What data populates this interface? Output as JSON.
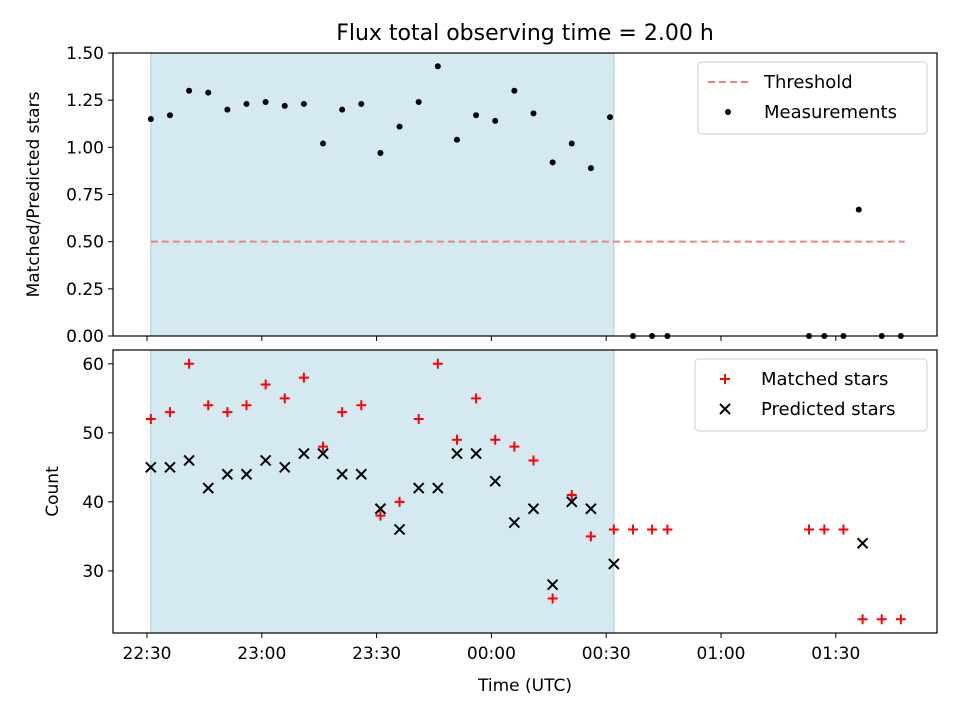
{
  "chart_data": [
    {
      "type": "scatter",
      "title": "Flux total observing time = 2.00 h",
      "ylabel": "Matched/Predicted stars",
      "xlabel": "",
      "ylim": [
        0,
        1.5
      ],
      "yticks": [
        0.0,
        0.25,
        0.5,
        0.75,
        1.0,
        1.25,
        1.5
      ],
      "ytick_labels": [
        "0.00",
        "0.25",
        "0.50",
        "0.75",
        "1.00",
        "1.25",
        "1.50"
      ],
      "shaded_interval": [
        "22:31",
        "00:32"
      ],
      "shade_color": "#d4eaf0",
      "legend_position": "top-right",
      "threshold": {
        "name": "Threshold",
        "value": 0.5,
        "x_range": [
          "22:31",
          "01:48"
        ],
        "color": "#f08080",
        "style": "dashed"
      },
      "series": [
        {
          "name": "Measurements",
          "marker": "dot",
          "color": "#000000",
          "points": [
            [
              "22:31",
              1.15
            ],
            [
              "22:36",
              1.17
            ],
            [
              "22:41",
              1.3
            ],
            [
              "22:46",
              1.29
            ],
            [
              "22:51",
              1.2
            ],
            [
              "22:56",
              1.23
            ],
            [
              "23:01",
              1.24
            ],
            [
              "23:06",
              1.22
            ],
            [
              "23:11",
              1.23
            ],
            [
              "23:16",
              1.02
            ],
            [
              "23:21",
              1.2
            ],
            [
              "23:26",
              1.23
            ],
            [
              "23:31",
              0.97
            ],
            [
              "23:36",
              1.11
            ],
            [
              "23:41",
              1.24
            ],
            [
              "23:46",
              1.43
            ],
            [
              "23:51",
              1.04
            ],
            [
              "23:56",
              1.17
            ],
            [
              "00:01",
              1.14
            ],
            [
              "00:06",
              1.3
            ],
            [
              "00:11",
              1.18
            ],
            [
              "00:16",
              0.92
            ],
            [
              "00:21",
              1.02
            ],
            [
              "00:26",
              0.89
            ],
            [
              "00:31",
              1.16
            ],
            [
              "00:37",
              0.0
            ],
            [
              "00:42",
              0.0
            ],
            [
              "00:46",
              0.0
            ],
            [
              "01:23",
              0.0
            ],
            [
              "01:27",
              0.0
            ],
            [
              "01:32",
              0.0
            ],
            [
              "01:36",
              0.67
            ],
            [
              "01:42",
              0.0
            ],
            [
              "01:47",
              0.0
            ]
          ]
        }
      ]
    },
    {
      "type": "scatter",
      "title": "",
      "ylabel": "Count",
      "xlabel": "Time (UTC)",
      "ylim": [
        21,
        62
      ],
      "yticks": [
        30,
        40,
        50,
        60
      ],
      "ytick_labels": [
        "30",
        "40",
        "50",
        "60"
      ],
      "xticks": [
        "22:30",
        "23:00",
        "23:30",
        "00:00",
        "00:30",
        "01:00",
        "01:30"
      ],
      "xtick_labels": [
        "22:30",
        "23:00",
        "23:30",
        "00:00",
        "00:30",
        "01:00",
        "01:30"
      ],
      "shaded_interval": [
        "22:31",
        "00:32"
      ],
      "shade_color": "#d4eaf0",
      "legend_position": "top-right",
      "series": [
        {
          "name": "Matched stars",
          "marker": "plus",
          "color": "#ff0000",
          "points": [
            [
              "22:31",
              52
            ],
            [
              "22:36",
              53
            ],
            [
              "22:41",
              60
            ],
            [
              "22:46",
              54
            ],
            [
              "22:51",
              53
            ],
            [
              "22:56",
              54
            ],
            [
              "23:01",
              57
            ],
            [
              "23:06",
              55
            ],
            [
              "23:11",
              58
            ],
            [
              "23:16",
              48
            ],
            [
              "23:21",
              53
            ],
            [
              "23:26",
              54
            ],
            [
              "23:31",
              38
            ],
            [
              "23:36",
              40
            ],
            [
              "23:41",
              52
            ],
            [
              "23:46",
              60
            ],
            [
              "23:51",
              49
            ],
            [
              "23:56",
              55
            ],
            [
              "00:01",
              49
            ],
            [
              "00:06",
              48
            ],
            [
              "00:11",
              46
            ],
            [
              "00:16",
              26
            ],
            [
              "00:21",
              41
            ],
            [
              "00:26",
              35
            ],
            [
              "00:32",
              36
            ],
            [
              "00:37",
              36
            ],
            [
              "00:42",
              36
            ],
            [
              "00:46",
              36
            ],
            [
              "01:23",
              36
            ],
            [
              "01:27",
              36
            ],
            [
              "01:32",
              36
            ],
            [
              "01:37",
              23
            ],
            [
              "01:42",
              23
            ],
            [
              "01:47",
              23
            ]
          ]
        },
        {
          "name": "Predicted stars",
          "marker": "x",
          "color": "#000000",
          "points": [
            [
              "22:31",
              45
            ],
            [
              "22:36",
              45
            ],
            [
              "22:41",
              46
            ],
            [
              "22:46",
              42
            ],
            [
              "22:51",
              44
            ],
            [
              "22:56",
              44
            ],
            [
              "23:01",
              46
            ],
            [
              "23:06",
              45
            ],
            [
              "23:11",
              47
            ],
            [
              "23:16",
              47
            ],
            [
              "23:21",
              44
            ],
            [
              "23:26",
              44
            ],
            [
              "23:31",
              39
            ],
            [
              "23:36",
              36
            ],
            [
              "23:41",
              42
            ],
            [
              "23:46",
              42
            ],
            [
              "23:51",
              47
            ],
            [
              "23:56",
              47
            ],
            [
              "00:01",
              43
            ],
            [
              "00:06",
              37
            ],
            [
              "00:11",
              39
            ],
            [
              "00:16",
              28
            ],
            [
              "00:21",
              40
            ],
            [
              "00:26",
              39
            ],
            [
              "00:32",
              31
            ],
            [
              "01:37",
              34
            ]
          ]
        }
      ]
    }
  ]
}
